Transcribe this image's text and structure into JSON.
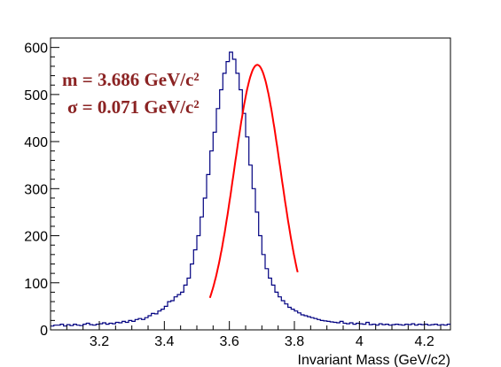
{
  "chart_data": {
    "type": "histogram",
    "title": "",
    "xlabel": "Invariant Mass (GeV/c2)",
    "ylabel": "",
    "xlim": [
      3.05,
      4.28
    ],
    "ylim": [
      0,
      620
    ],
    "x_ticks": [
      3.2,
      3.4,
      3.6,
      3.8,
      4.0,
      4.2
    ],
    "x_tick_labels": [
      "3.2",
      "3.4",
      "3.6",
      "3.8",
      "4",
      "4.2"
    ],
    "y_ticks": [
      0,
      100,
      200,
      300,
      400,
      500,
      600
    ],
    "y_tick_labels": [
      "0",
      "100",
      "200",
      "300",
      "400",
      "500",
      "600"
    ],
    "grid": false,
    "histogram": {
      "bin_width": 0.01,
      "x_start": 3.05,
      "color": "#000080",
      "counts": [
        8,
        10,
        10,
        12,
        8,
        11,
        9,
        12,
        10,
        9,
        12,
        14,
        11,
        10,
        12,
        13,
        15,
        12,
        14,
        13,
        16,
        15,
        18,
        16,
        20,
        18,
        22,
        24,
        22,
        26,
        30,
        35,
        34,
        40,
        44,
        50,
        60,
        62,
        70,
        75,
        80,
        95,
        110,
        140,
        170,
        200,
        240,
        280,
        330,
        380,
        420,
        470,
        510,
        545,
        570,
        590,
        575,
        545,
        510,
        460,
        410,
        350,
        300,
        250,
        200,
        160,
        130,
        110,
        95,
        80,
        70,
        62,
        55,
        48,
        44,
        40,
        36,
        32,
        30,
        28,
        26,
        24,
        22,
        20,
        19,
        18,
        17,
        16,
        15,
        18,
        14,
        13,
        15,
        12,
        14,
        13,
        12,
        16,
        11,
        12,
        10,
        13,
        11,
        12,
        10,
        11,
        12,
        11,
        10,
        12,
        11,
        13,
        10,
        12,
        11,
        12,
        10,
        11,
        12,
        10,
        11,
        10,
        12
      ]
    },
    "fit": {
      "name": "gaussian-fit",
      "color": "#ff0000",
      "mean": 3.686,
      "sigma": 0.071,
      "amplitude": 563,
      "range": [
        3.54,
        3.81
      ]
    },
    "annotations": [
      "m = 3.686 GeV/c²",
      "σ = 0.071 GeV/c²"
    ],
    "annotation_color": "#8b2323"
  }
}
